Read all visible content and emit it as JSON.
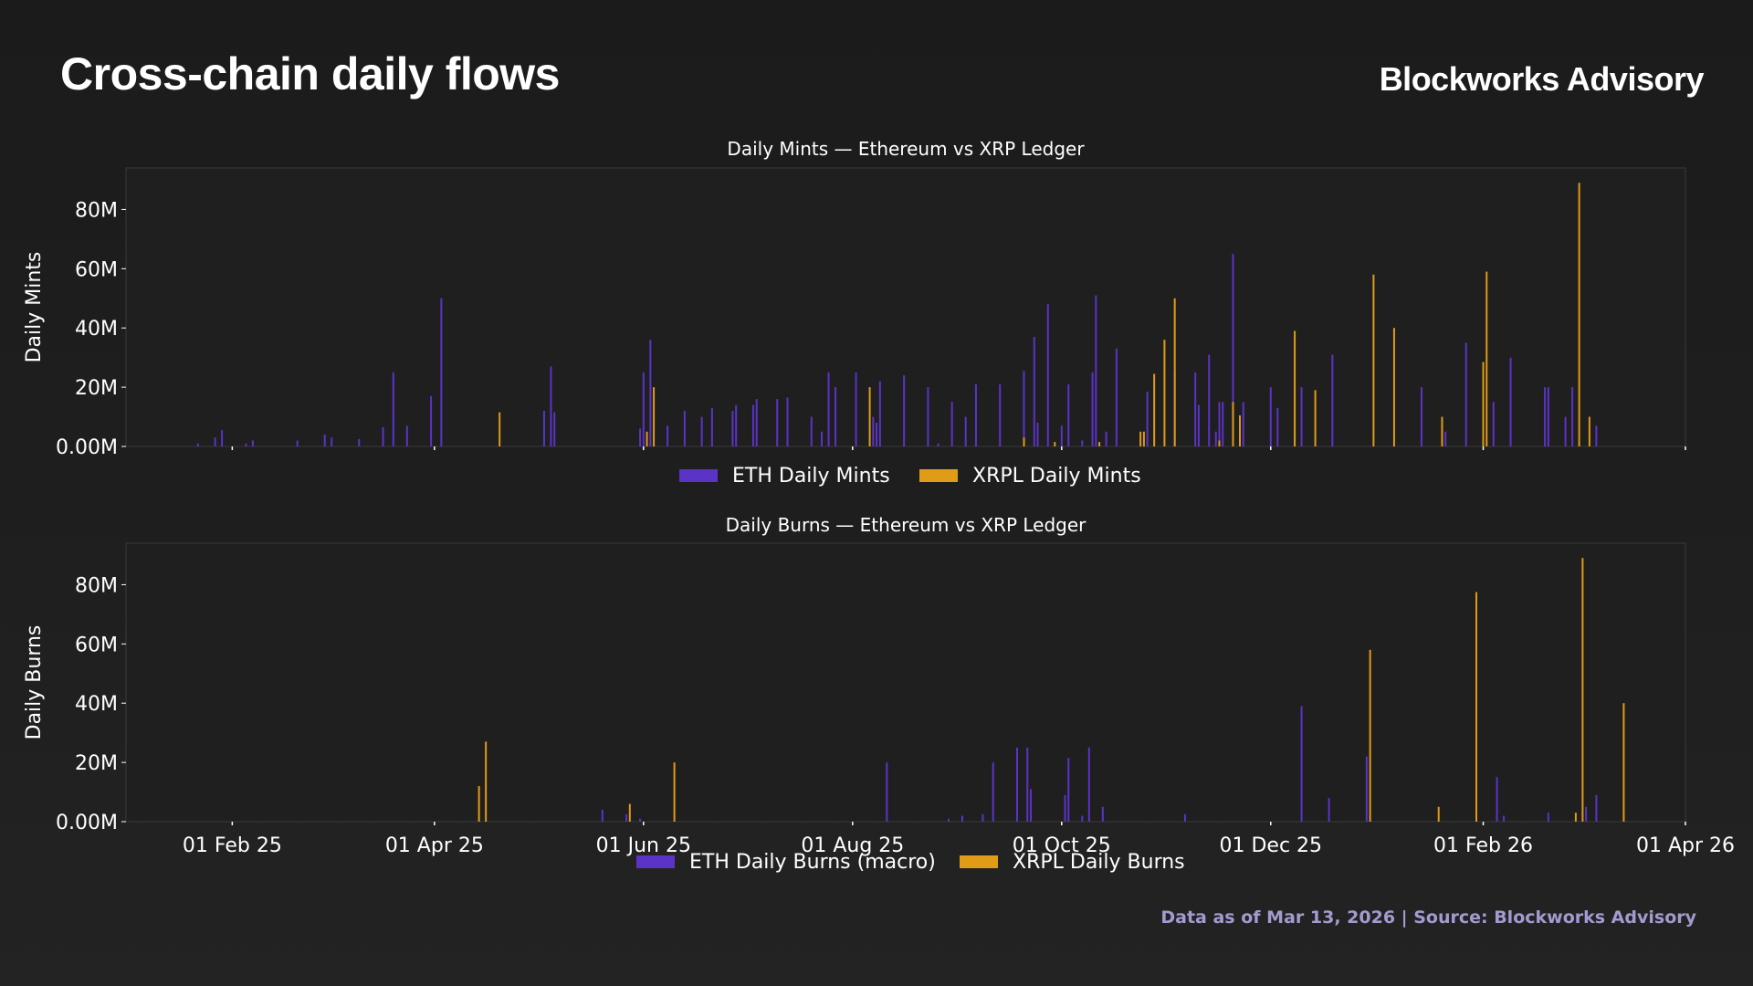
{
  "page": {
    "title": "Cross-chain daily flows",
    "brand": "Blockworks Advisory",
    "footer": "Data as of Mar 13, 2026 | Source: Blockworks Advisory"
  },
  "colors": {
    "eth": "#5b33c7",
    "xrpl": "#e09b17",
    "plot_bg": "#1f1f1f",
    "frame": "#3a3a3a"
  },
  "chart_data": [
    {
      "type": "bar",
      "title": "Daily Mints — Ethereum vs XRP Ledger",
      "ylabel": "Daily Mints",
      "xlabel": "",
      "xlim": [
        "2025-01-01",
        "2026-04-01"
      ],
      "ylim": [
        0,
        94000000
      ],
      "yticks": [
        0,
        20000000,
        40000000,
        60000000,
        80000000
      ],
      "ytick_labels": [
        "0.00M",
        "20M",
        "40M",
        "60M",
        "80M"
      ],
      "xticks": [
        "2025-02-01",
        "2025-04-01",
        "2025-06-01",
        "2025-08-01",
        "2025-10-01",
        "2025-12-01",
        "2026-02-01",
        "2026-04-01"
      ],
      "xtick_labels": [],
      "legend_position": "bottom-center",
      "series": [
        {
          "name": "ETH Daily Mints",
          "color_key": "eth",
          "points": [
            [
              "2025-01-22",
              1000000
            ],
            [
              "2025-01-27",
              3000000
            ],
            [
              "2025-01-29",
              5500000
            ],
            [
              "2025-02-05",
              1000000
            ],
            [
              "2025-02-07",
              2000000
            ],
            [
              "2025-02-20",
              2000000
            ],
            [
              "2025-02-28",
              4000000
            ],
            [
              "2025-03-02",
              3000000
            ],
            [
              "2025-03-10",
              2500000
            ],
            [
              "2025-03-17",
              6500000
            ],
            [
              "2025-03-20",
              25000000
            ],
            [
              "2025-03-24",
              7000000
            ],
            [
              "2025-03-31",
              17000000
            ],
            [
              "2025-04-03",
              50000000
            ],
            [
              "2025-05-03",
              12000000
            ],
            [
              "2025-05-05",
              27000000
            ],
            [
              "2025-05-06",
              11500000
            ],
            [
              "2025-05-31",
              6000000
            ],
            [
              "2025-06-01",
              25000000
            ],
            [
              "2025-06-03",
              36000000
            ],
            [
              "2025-06-08",
              7000000
            ],
            [
              "2025-06-13",
              12000000
            ],
            [
              "2025-06-18",
              10000000
            ],
            [
              "2025-06-21",
              13000000
            ],
            [
              "2025-06-27",
              12000000
            ],
            [
              "2025-06-28",
              14000000
            ],
            [
              "2025-07-03",
              14000000
            ],
            [
              "2025-07-04",
              16000000
            ],
            [
              "2025-07-10",
              16000000
            ],
            [
              "2025-07-13",
              16500000
            ],
            [
              "2025-07-20",
              10000000
            ],
            [
              "2025-07-23",
              5000000
            ],
            [
              "2025-07-25",
              25000000
            ],
            [
              "2025-07-27",
              20000000
            ],
            [
              "2025-08-02",
              25000000
            ],
            [
              "2025-08-07",
              10000000
            ],
            [
              "2025-08-08",
              8000000
            ],
            [
              "2025-08-09",
              22000000
            ],
            [
              "2025-08-16",
              24000000
            ],
            [
              "2025-08-23",
              20000000
            ],
            [
              "2025-08-26",
              1000000
            ],
            [
              "2025-08-30",
              15000000
            ],
            [
              "2025-09-03",
              10000000
            ],
            [
              "2025-09-06",
              21000000
            ],
            [
              "2025-09-13",
              21000000
            ],
            [
              "2025-09-20",
              25500000
            ],
            [
              "2025-09-23",
              37000000
            ],
            [
              "2025-09-24",
              8000000
            ],
            [
              "2025-09-27",
              48000000
            ],
            [
              "2025-10-01",
              7000000
            ],
            [
              "2025-10-03",
              21000000
            ],
            [
              "2025-10-07",
              2000000
            ],
            [
              "2025-10-10",
              25000000
            ],
            [
              "2025-10-11",
              51000000
            ],
            [
              "2025-10-14",
              5000000
            ],
            [
              "2025-10-17",
              33000000
            ],
            [
              "2025-10-26",
              18500000
            ],
            [
              "2025-11-03",
              25000000
            ],
            [
              "2025-11-09",
              25000000
            ],
            [
              "2025-11-10",
              14000000
            ],
            [
              "2025-11-13",
              31000000
            ],
            [
              "2025-11-15",
              5000000
            ],
            [
              "2025-11-16",
              15000000
            ],
            [
              "2025-11-17",
              15000000
            ],
            [
              "2025-11-20",
              65000000
            ],
            [
              "2025-11-23",
              15000000
            ],
            [
              "2025-12-01",
              20000000
            ],
            [
              "2025-12-03",
              13000000
            ],
            [
              "2025-12-08",
              4000000
            ],
            [
              "2025-12-10",
              20000000
            ],
            [
              "2025-12-19",
              31000000
            ],
            [
              "2026-01-14",
              20000000
            ],
            [
              "2026-01-21",
              5000000
            ],
            [
              "2026-01-27",
              35000000
            ],
            [
              "2026-02-04",
              15000000
            ],
            [
              "2026-02-09",
              30000000
            ],
            [
              "2026-02-19",
              20000000
            ],
            [
              "2026-02-20",
              20000000
            ],
            [
              "2026-02-25",
              10000000
            ],
            [
              "2026-02-27",
              20000000
            ],
            [
              "2026-03-06",
              7000000
            ]
          ]
        },
        {
          "name": "XRPL Daily Mints",
          "color_key": "xrpl",
          "points": [
            [
              "2025-04-20",
              11500000
            ],
            [
              "2025-06-02",
              5000000
            ],
            [
              "2025-06-04",
              20000000
            ],
            [
              "2025-08-06",
              20000000
            ],
            [
              "2025-09-20",
              3000000
            ],
            [
              "2025-09-29",
              1500000
            ],
            [
              "2025-10-12",
              1500000
            ],
            [
              "2025-10-24",
              5000000
            ],
            [
              "2025-10-25",
              5000000
            ],
            [
              "2025-10-28",
              24500000
            ],
            [
              "2025-10-31",
              36000000
            ],
            [
              "2025-11-03",
              50000000
            ],
            [
              "2025-11-16",
              2000000
            ],
            [
              "2025-11-20",
              15000000
            ],
            [
              "2025-11-22",
              10500000
            ],
            [
              "2025-12-08",
              39000000
            ],
            [
              "2025-12-14",
              19000000
            ],
            [
              "2025-12-31",
              58000000
            ],
            [
              "2026-01-06",
              40000000
            ],
            [
              "2026-01-20",
              10000000
            ],
            [
              "2026-02-01",
              28500000
            ],
            [
              "2026-02-02",
              59000000
            ],
            [
              "2026-03-01",
              89000000
            ],
            [
              "2026-03-04",
              10000000
            ]
          ]
        }
      ]
    },
    {
      "type": "bar",
      "title": "Daily Burns — Ethereum vs XRP Ledger",
      "ylabel": "Daily Burns",
      "xlabel": "",
      "xlim": [
        "2025-01-01",
        "2026-04-01"
      ],
      "ylim": [
        0,
        94000000
      ],
      "yticks": [
        0,
        20000000,
        40000000,
        60000000,
        80000000
      ],
      "ytick_labels": [
        "0.00M",
        "20M",
        "40M",
        "60M",
        "80M"
      ],
      "xticks": [
        "2025-02-01",
        "2025-04-01",
        "2025-06-01",
        "2025-08-01",
        "2025-10-01",
        "2025-12-01",
        "2026-02-01",
        "2026-04-01"
      ],
      "xtick_labels": [
        "01 Feb 25",
        "01 Apr 25",
        "01 Jun 25",
        "01 Aug 25",
        "01 Oct 25",
        "01 Dec 25",
        "01 Feb 26",
        "01 Apr 26"
      ],
      "legend_position": "bottom-center",
      "series": [
        {
          "name": "ETH Daily Burns (macro)",
          "color_key": "eth",
          "points": [
            [
              "2025-05-20",
              4000000
            ],
            [
              "2025-05-27",
              2500000
            ],
            [
              "2025-05-31",
              1000000
            ],
            [
              "2025-08-11",
              20000000
            ],
            [
              "2025-08-29",
              1000000
            ],
            [
              "2025-09-02",
              2000000
            ],
            [
              "2025-09-08",
              2500000
            ],
            [
              "2025-09-11",
              20000000
            ],
            [
              "2025-09-18",
              25000000
            ],
            [
              "2025-09-21",
              25000000
            ],
            [
              "2025-09-22",
              11000000
            ],
            [
              "2025-10-02",
              9000000
            ],
            [
              "2025-10-03",
              21500000
            ],
            [
              "2025-10-07",
              2000000
            ],
            [
              "2025-10-09",
              25000000
            ],
            [
              "2025-10-13",
              5000000
            ],
            [
              "2025-11-06",
              2500000
            ],
            [
              "2025-12-10",
              39000000
            ],
            [
              "2025-12-18",
              8000000
            ],
            [
              "2025-12-29",
              22000000
            ],
            [
              "2026-02-05",
              15000000
            ],
            [
              "2026-02-07",
              2000000
            ],
            [
              "2026-02-20",
              3000000
            ],
            [
              "2026-03-03",
              5000000
            ],
            [
              "2026-03-06",
              9000000
            ]
          ]
        },
        {
          "name": "XRPL Daily Burns",
          "color_key": "xrpl",
          "points": [
            [
              "2025-04-14",
              12000000
            ],
            [
              "2025-04-16",
              27000000
            ],
            [
              "2025-05-28",
              6000000
            ],
            [
              "2025-06-10",
              20000000
            ],
            [
              "2025-12-30",
              58000000
            ],
            [
              "2026-01-19",
              5000000
            ],
            [
              "2026-01-30",
              77500000
            ],
            [
              "2026-02-28",
              3000000
            ],
            [
              "2026-03-02",
              89000000
            ],
            [
              "2026-03-14",
              40000000
            ]
          ]
        }
      ]
    }
  ]
}
